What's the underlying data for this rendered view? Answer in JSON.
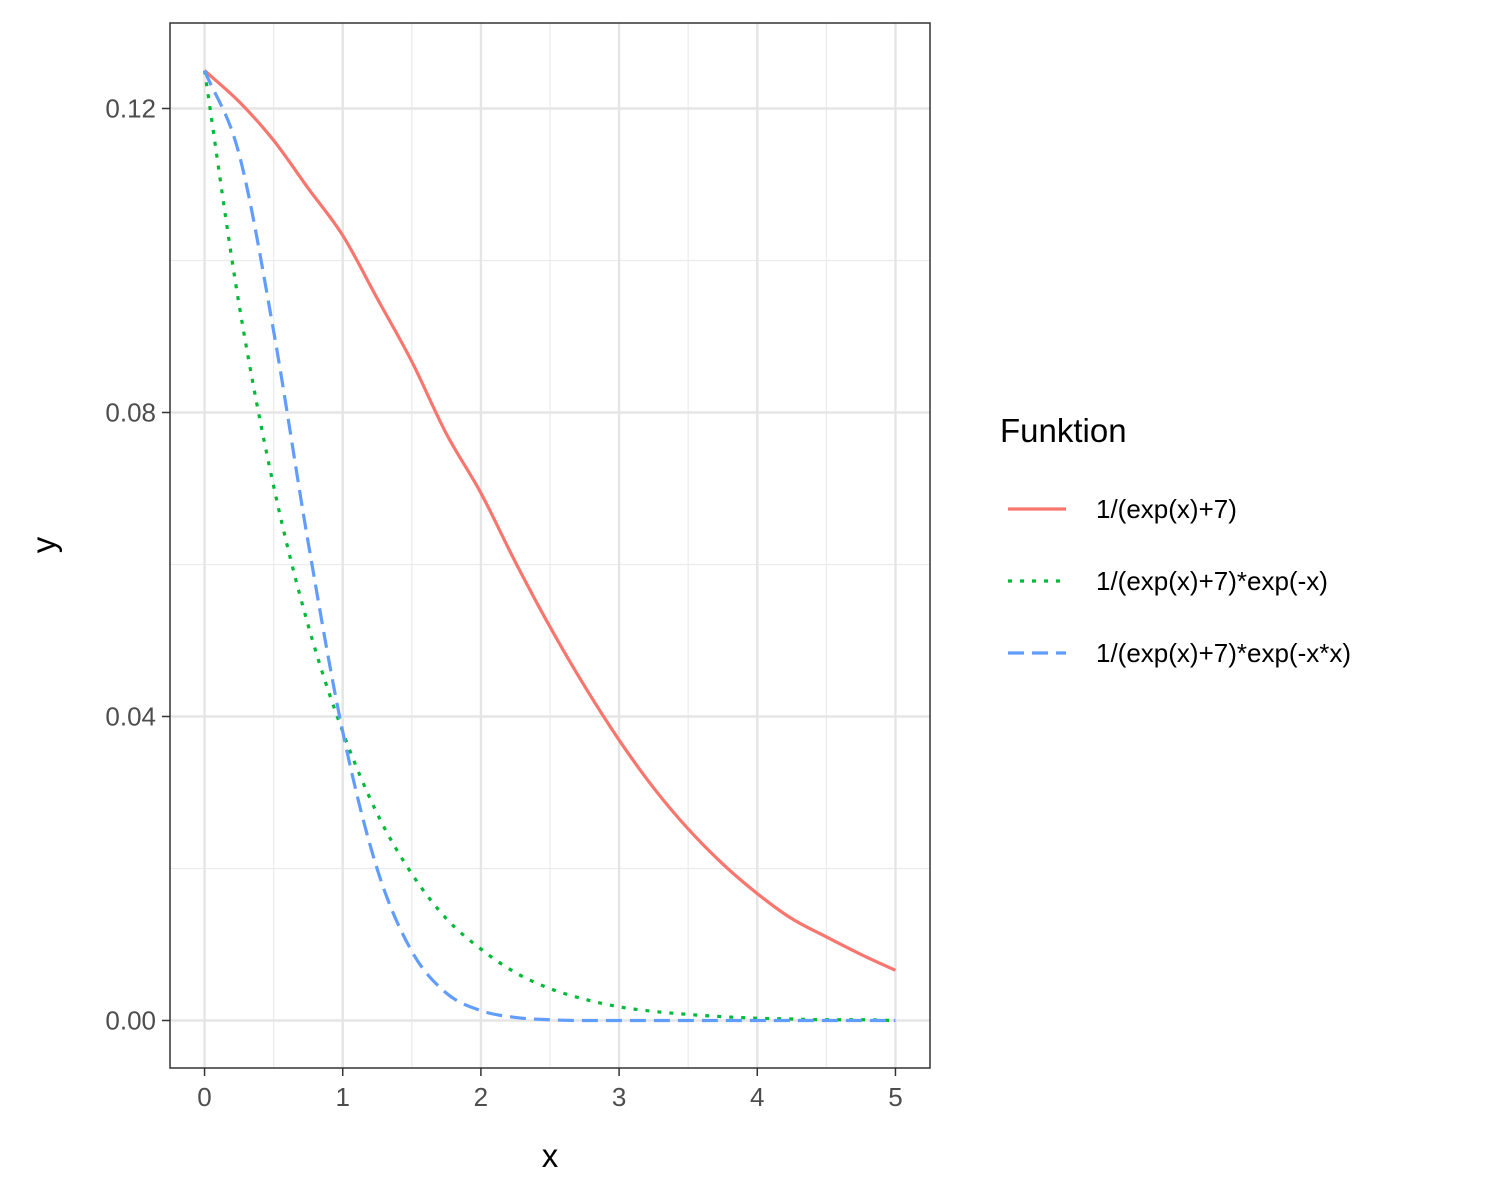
{
  "chart_data": {
    "type": "line",
    "xlabel": "x",
    "ylabel": "y",
    "xlim": [
      -0.25,
      5.25
    ],
    "ylim": [
      -0.00625,
      0.13125
    ],
    "x_ticks": [
      0,
      1,
      2,
      3,
      4,
      5
    ],
    "x_tick_labels": [
      "0",
      "1",
      "2",
      "3",
      "4",
      "5"
    ],
    "y_ticks": [
      0.0,
      0.04,
      0.08,
      0.12
    ],
    "y_tick_labels": [
      "0.00",
      "0.04",
      "0.08",
      "0.12"
    ],
    "grid": true,
    "legend": {
      "title": "Funktion",
      "placement": "right"
    },
    "x": [
      0,
      0.25,
      0.5,
      0.75,
      1,
      1.25,
      1.5,
      1.75,
      2,
      2.25,
      2.5,
      2.75,
      3,
      3.25,
      3.5,
      3.75,
      4,
      4.25,
      4.5,
      4.75,
      5
    ],
    "series": [
      {
        "name": "1/(exp(x)+7)",
        "color": "#F8766D",
        "dash": "solid",
        "values": [
          0.125,
          0.1209,
          0.1158,
          0.1095,
          0.1033,
          0.095,
          0.0867,
          0.0772,
          0.0694,
          0.0603,
          0.0518,
          0.044,
          0.0369,
          0.0306,
          0.0252,
          0.0206,
          0.0167,
          0.0134,
          0.011,
          0.0087,
          0.0066
        ]
      },
      {
        "name": "1/(exp(x)+7)*exp(-x)",
        "color": "#00BA38",
        "dash": "dotted",
        "values": [
          0.125,
          0.0942,
          0.0703,
          0.052,
          0.038,
          0.0272,
          0.0193,
          0.0134,
          0.0094,
          0.0063,
          0.0042,
          0.0028,
          0.0018,
          0.0012,
          0.0008,
          0.0005,
          0.0003,
          0.0002,
          0.0001,
          0.0001,
          0.0
        ]
      },
      {
        "name": "1/(exp(x)+7)*exp(-x*x)",
        "color": "#619CFF",
        "dash": "dashed",
        "values": [
          0.125,
          0.114,
          0.0907,
          0.0629,
          0.038,
          0.0199,
          0.0091,
          0.0036,
          0.0013,
          0.0004,
          0.0001,
          0.0,
          0.0,
          0.0,
          0.0,
          0.0,
          0.0,
          0.0,
          0.0,
          0.0,
          0.0
        ]
      }
    ]
  }
}
